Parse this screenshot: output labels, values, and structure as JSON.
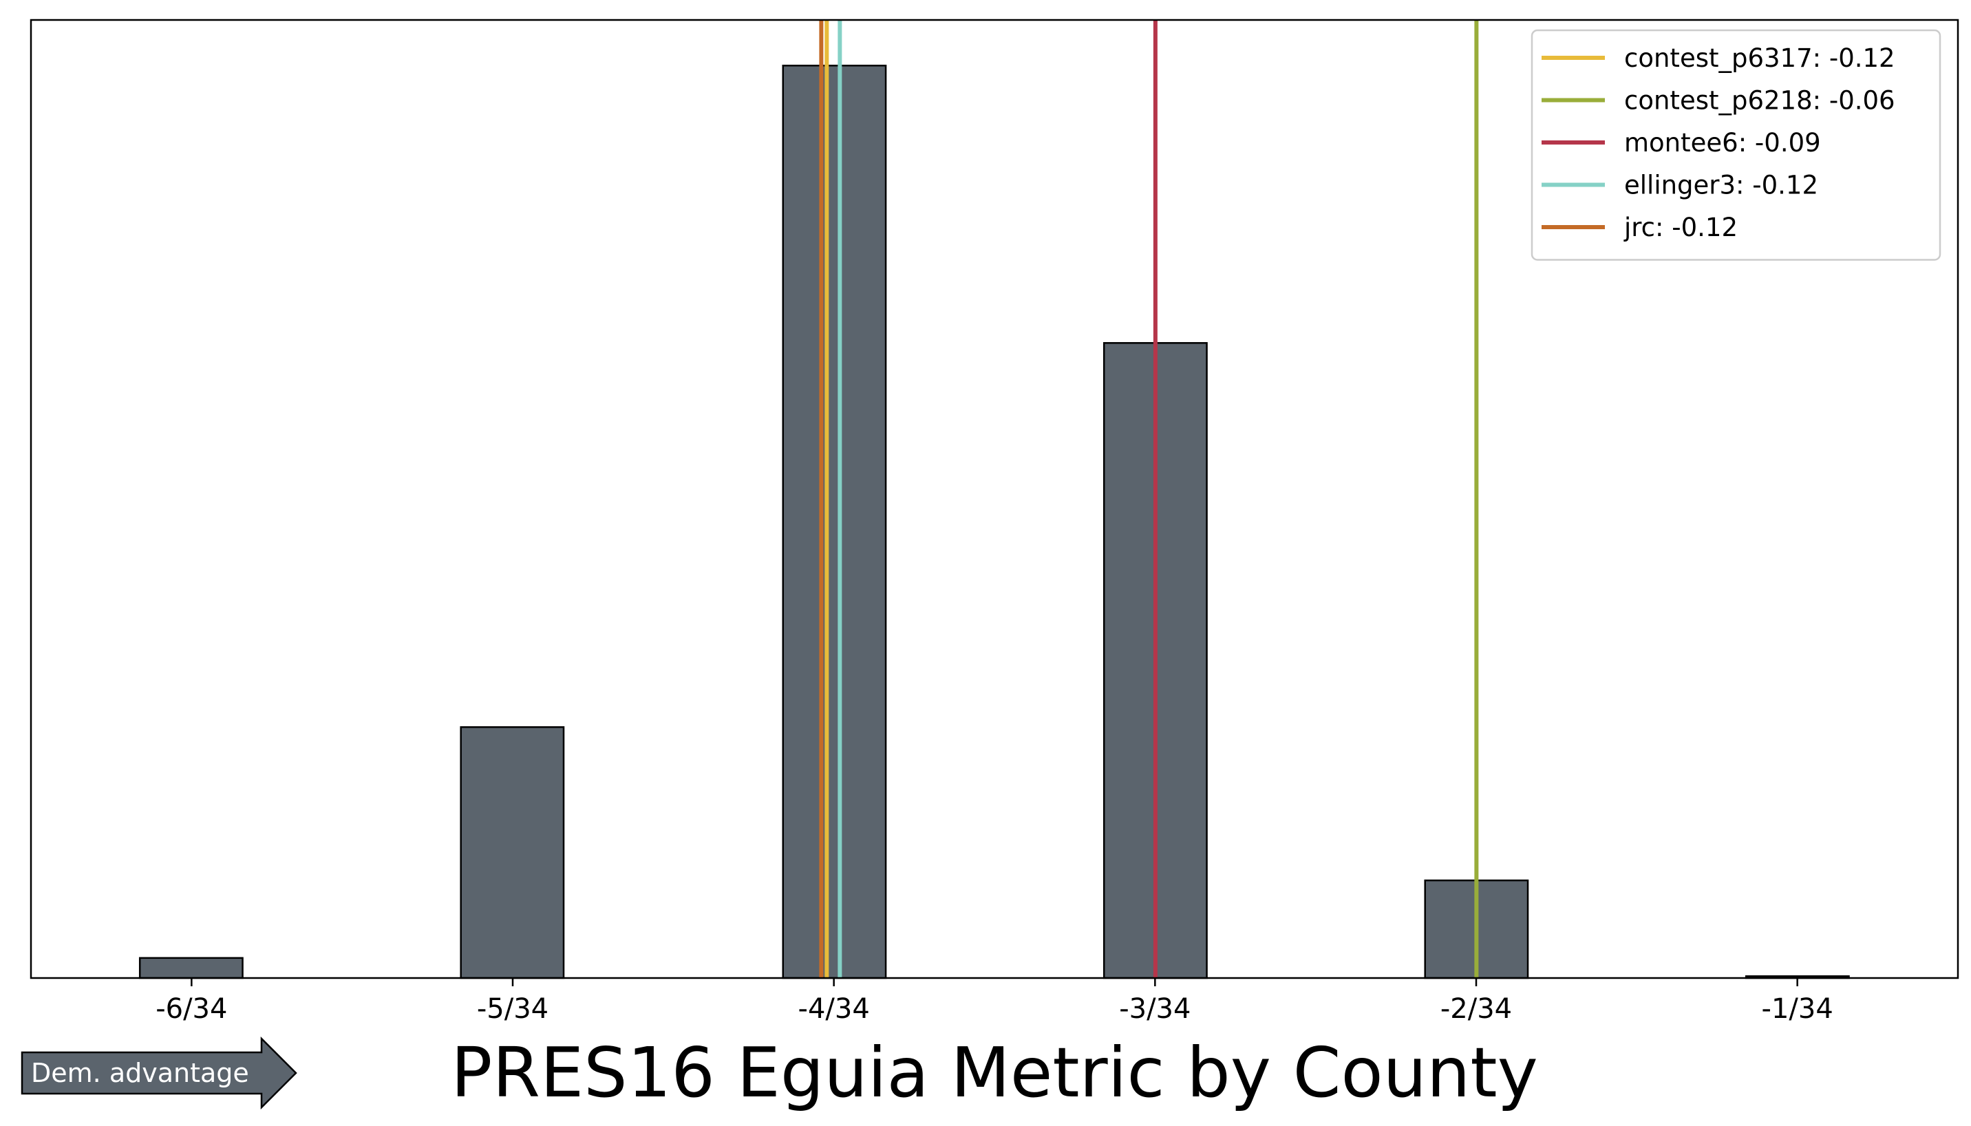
{
  "chart_data": {
    "type": "bar",
    "title": "PRES16 Eguia Metric by County",
    "xlabel": "",
    "ylabel": "",
    "x_tick_labels": [
      "-6/34",
      "-5/34",
      "-4/34",
      "-3/34",
      "-2/34",
      "-1/34"
    ],
    "bins": [
      {
        "x": -0.1765,
        "value": 2.2
      },
      {
        "x": -0.1618,
        "value": 0
      },
      {
        "x": -0.1471,
        "value": 27.5
      },
      {
        "x": -0.1324,
        "value": 0
      },
      {
        "x": -0.1176,
        "value": 100
      },
      {
        "x": -0.1029,
        "value": 0
      },
      {
        "x": -0.0882,
        "value": 69.6
      },
      {
        "x": -0.0735,
        "value": 0
      },
      {
        "x": -0.0588,
        "value": 10.7
      },
      {
        "x": -0.0441,
        "value": 0
      },
      {
        "x": -0.0294,
        "value": 0.2
      }
    ],
    "ylim": [
      0,
      105
    ],
    "y_ticks_shown": false,
    "reference_lines": [
      {
        "name": "contest_p6317",
        "value": -0.12,
        "x": -0.1183,
        "color": "#e8bb3a"
      },
      {
        "name": "contest_p6218",
        "value": -0.06,
        "x": -0.0588,
        "color": "#99ad3a"
      },
      {
        "name": "montee6",
        "value": -0.09,
        "x": -0.0882,
        "color": "#b5364a"
      },
      {
        "name": "ellinger3",
        "value": -0.12,
        "x": -0.1171,
        "color": "#85d1c6"
      },
      {
        "name": "jrc",
        "value": -0.12,
        "x": -0.1188,
        "color": "#c46b27"
      }
    ],
    "legend": {
      "position": "top-right",
      "entries": [
        {
          "label": "contest_p6317: -0.12",
          "color": "#e8bb3a"
        },
        {
          "label": "contest_p6218: -0.06",
          "color": "#99ad3a"
        },
        {
          "label": "montee6: -0.09",
          "color": "#b5364a"
        },
        {
          "label": "ellinger3: -0.12",
          "color": "#85d1c6"
        },
        {
          "label": "jrc: -0.12",
          "color": "#c46b27"
        }
      ]
    },
    "bar_color": "#5b646d",
    "bar_edge_color": "#000000",
    "grid": false
  },
  "annotation": {
    "arrow_label": "Dem. advantage",
    "arrow_color": "#5b646d"
  }
}
